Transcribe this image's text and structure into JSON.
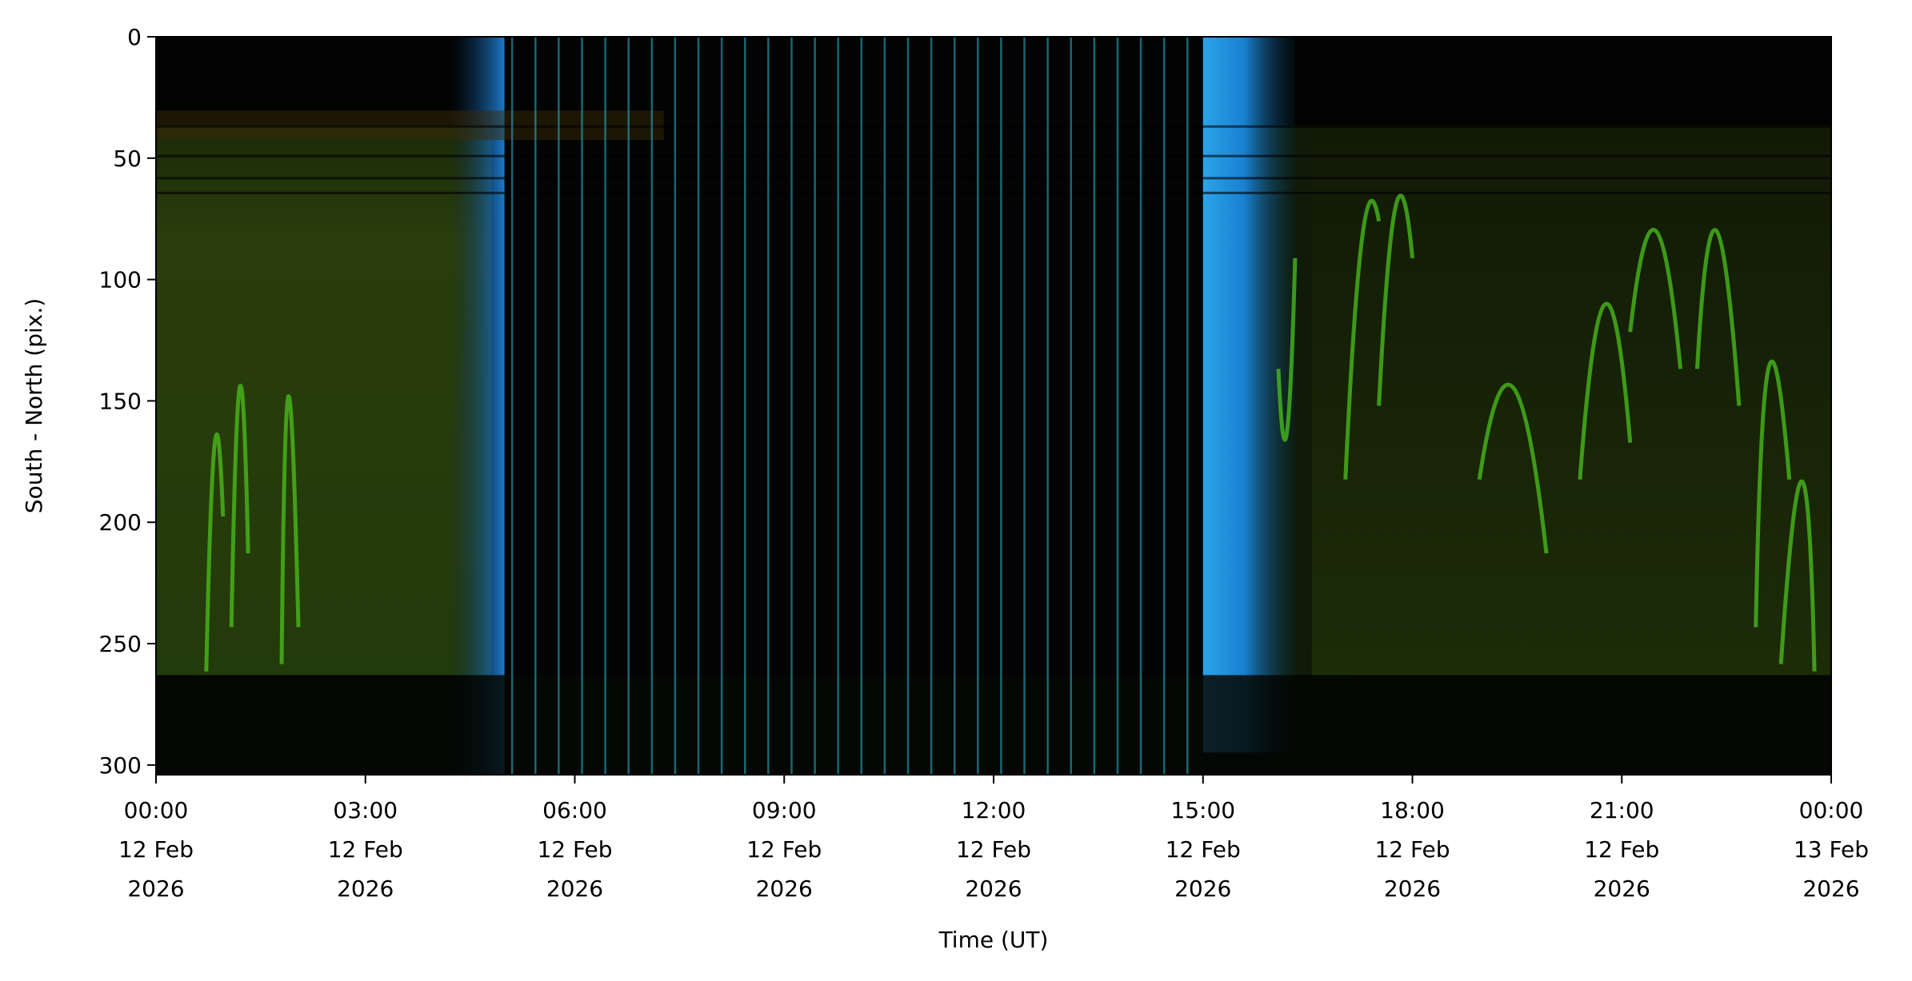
{
  "chart_data": {
    "type": "image",
    "x_label": "Time (UT)",
    "y_label": "South - North (pix.)",
    "xlim": [
      0,
      24
    ],
    "ylim": [
      0,
      304
    ],
    "y_inverted": true,
    "xticks": [
      {
        "value": 0,
        "label": "00:00\n12 Feb\n2026"
      },
      {
        "value": 3,
        "label": "03:00\n12 Feb\n2026"
      },
      {
        "value": 6,
        "label": "06:00\n12 Feb\n2026"
      },
      {
        "value": 9,
        "label": "09:00\n12 Feb\n2026"
      },
      {
        "value": 12,
        "label": "12:00\n12 Feb\n2026"
      },
      {
        "value": 15,
        "label": "15:00\n12 Feb\n2026"
      },
      {
        "value": 18,
        "label": "18:00\n12 Feb\n2026"
      },
      {
        "value": 21,
        "label": "21:00\n12 Feb\n2026"
      },
      {
        "value": 24,
        "label": "00:00\n13 Feb\n2026"
      }
    ],
    "yticks": [
      0,
      50,
      100,
      150,
      200,
      250,
      300
    ]
  }
}
